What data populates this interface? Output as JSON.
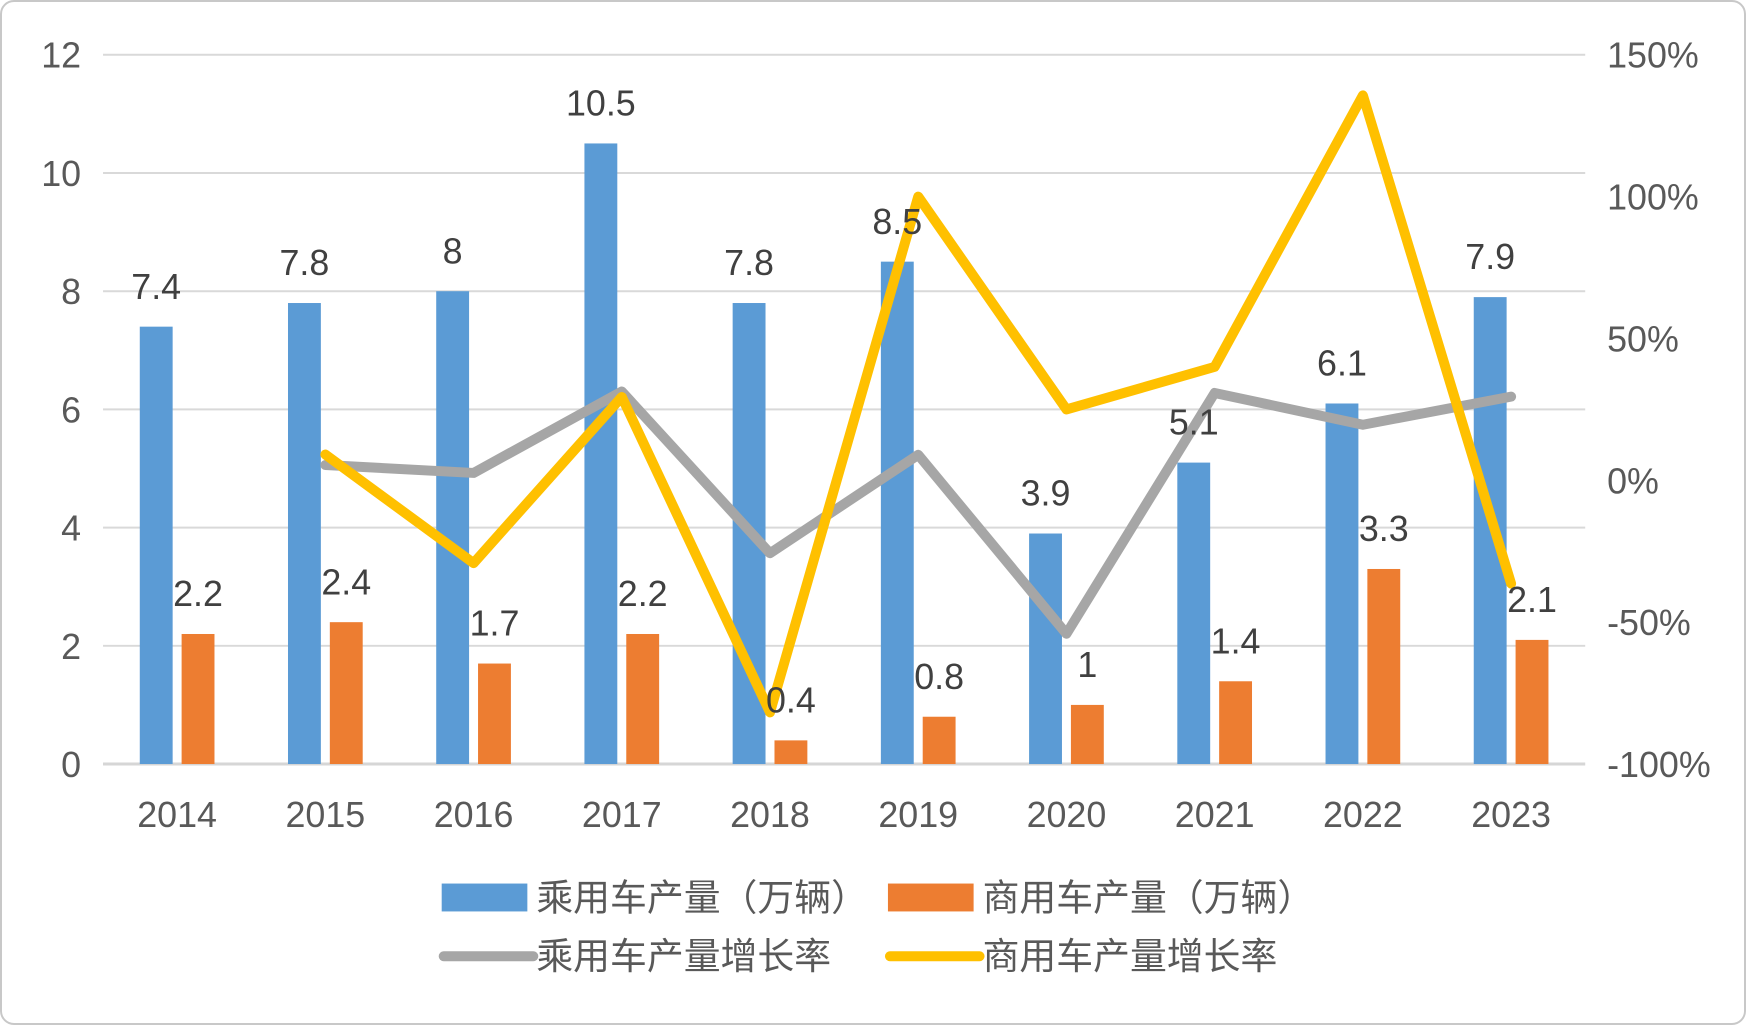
{
  "style": {
    "background": "#ffffff",
    "frame_border_color": "#c8c8c8",
    "grid_color": "#d9d9d9",
    "baseline_color": "#d6d6d6",
    "axis_text_color": "#595959",
    "data_label_color": "#404040",
    "legend_text_color": "#595959"
  },
  "chart_data": {
    "type": "combo",
    "title": "",
    "categories": [
      "2014",
      "2015",
      "2016",
      "2017",
      "2018",
      "2019",
      "2020",
      "2021",
      "2022",
      "2023"
    ],
    "series": [
      {
        "name": "乘用车产量（万辆）",
        "type": "bar",
        "axis": "left",
        "color": "#5b9bd5",
        "values": [
          7.4,
          7.8,
          8,
          10.5,
          7.8,
          8.5,
          3.9,
          5.1,
          6.1,
          7.9
        ],
        "data_labels": [
          "7.4",
          "7.8",
          "8",
          "10.5",
          "7.8",
          "8.5",
          "3.9",
          "5.1",
          "6.1",
          "7.9"
        ]
      },
      {
        "name": "商用车产量（万辆）",
        "type": "bar",
        "axis": "left",
        "color": "#ed7d31",
        "values": [
          2.2,
          2.4,
          1.7,
          2.2,
          0.4,
          0.8,
          1,
          1.4,
          3.3,
          2.1
        ],
        "data_labels": [
          "2.2",
          "2.4",
          "1.7",
          "2.2",
          "0.4",
          "0.8",
          "1",
          "1.4",
          "3.3",
          "2.1"
        ]
      },
      {
        "name": "乘用车产量增长率",
        "type": "line",
        "axis": "right",
        "color": "#a6a6a6",
        "values": [
          null,
          5.4,
          2.6,
          31.3,
          -25.7,
          9,
          -54.1,
          30.8,
          19.6,
          29.5
        ]
      },
      {
        "name": "商用车产量增长率",
        "type": "line",
        "axis": "right",
        "color": "#ffc000",
        "values": [
          null,
          9.1,
          -29.2,
          29.4,
          -81.8,
          100,
          25,
          40,
          135.7,
          -36.4
        ]
      }
    ],
    "left_axis": {
      "min": 0,
      "max": 12,
      "ticks": [
        0,
        2,
        4,
        6,
        8,
        10,
        12
      ],
      "tick_labels": [
        "0",
        "2",
        "4",
        "6",
        "8",
        "10",
        "12"
      ]
    },
    "right_axis": {
      "min": -100,
      "max": 150,
      "ticks": [
        -100,
        -50,
        0,
        50,
        100,
        150
      ],
      "tick_labels": [
        "-100%",
        "-50%",
        "0%",
        "50%",
        "100%",
        "150%"
      ]
    },
    "grid": true,
    "legend_position": "bottom",
    "legend_rows": [
      [
        "乘用车产量（万辆）",
        "商用车产量（万辆）"
      ],
      [
        "乘用车产量增长率",
        "商用车产量增长率"
      ]
    ]
  }
}
